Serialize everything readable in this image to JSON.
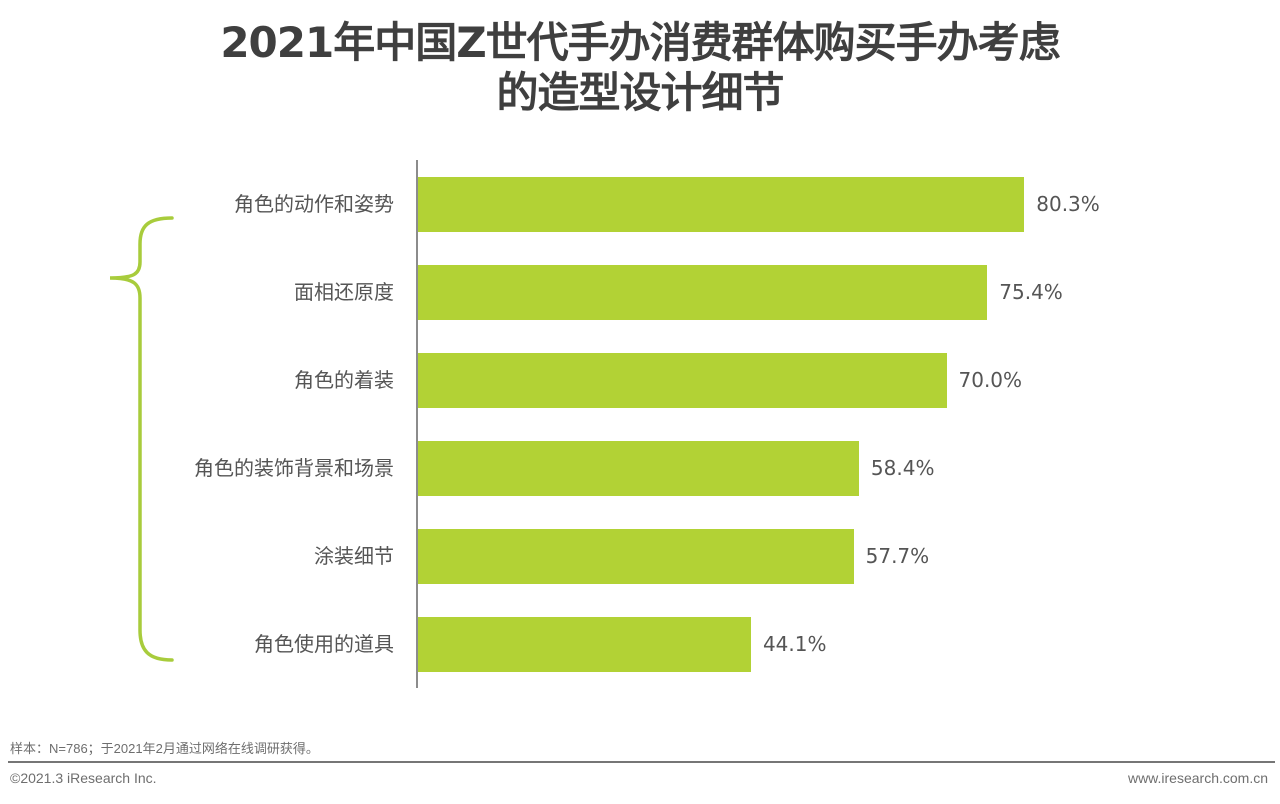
{
  "title": {
    "line1": "2021年中国Z世代手办消费群体购买手办考虑",
    "line2": "的造型设计细节"
  },
  "colors": {
    "bar": "#b2d235",
    "brace": "#a8cc3c",
    "text": "#555555",
    "title": "#3f3f3f",
    "axis": "#8c8c8c"
  },
  "chart_data": {
    "type": "bar",
    "orientation": "horizontal",
    "title": "2021年中国Z世代手办消费群体购买手办考虑的造型设计细节",
    "categories": [
      "角色的动作和姿势",
      "面相还原度",
      "角色的着装",
      "角色的装饰背景和场景",
      "涂装细节",
      "角色使用的道具"
    ],
    "values": [
      80.3,
      75.4,
      70.0,
      58.4,
      57.7,
      44.1
    ],
    "value_labels": [
      "80.3%",
      "75.4%",
      "70.0%",
      "58.4%",
      "57.7%",
      "44.1%"
    ],
    "unit": "%",
    "xlabel": "",
    "ylabel": "",
    "xlim": [
      0,
      100
    ],
    "grid": false,
    "legend": null,
    "annotations": [
      "left curly brace grouping categories 面相还原度 through 角色使用的道具"
    ]
  },
  "footer": {
    "note": "样本：N=786；于2021年2月通过网络在线调研获得。",
    "copyright": "©2021.3 iResearch Inc.",
    "website": "www.iresearch.com.cn"
  }
}
